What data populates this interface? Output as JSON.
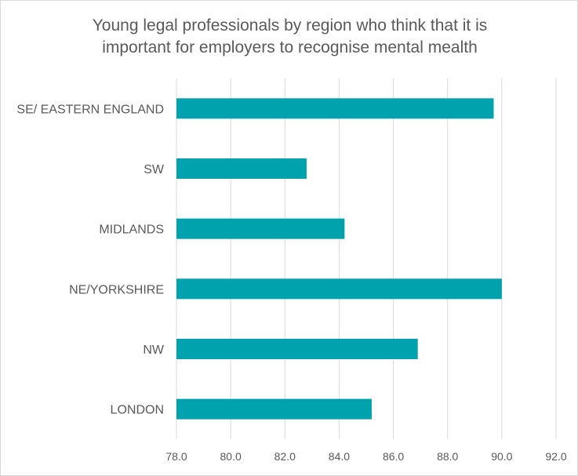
{
  "chart_data": {
    "type": "bar",
    "orientation": "horizontal",
    "title_lines": [
      "Young legal professionals by region who think that it is",
      "important for employers to recognise mental mealth"
    ],
    "categories": [
      "SE/ EASTERN ENGLAND",
      "SW",
      "MIDLANDS",
      "NE/YORKSHIRE",
      "NW",
      "LONDON"
    ],
    "values": [
      89.7,
      82.8,
      84.2,
      90.0,
      86.9,
      85.2
    ],
    "xlim": [
      78.0,
      92.0
    ],
    "xticks": [
      "78.0",
      "80.0",
      "82.0",
      "84.0",
      "86.0",
      "88.0",
      "90.0",
      "92.0"
    ],
    "grid": "vertical",
    "legend": "none",
    "bar_color": "#00a3ad",
    "grid_color": "#d9d9d9",
    "text_color": "#595959"
  }
}
